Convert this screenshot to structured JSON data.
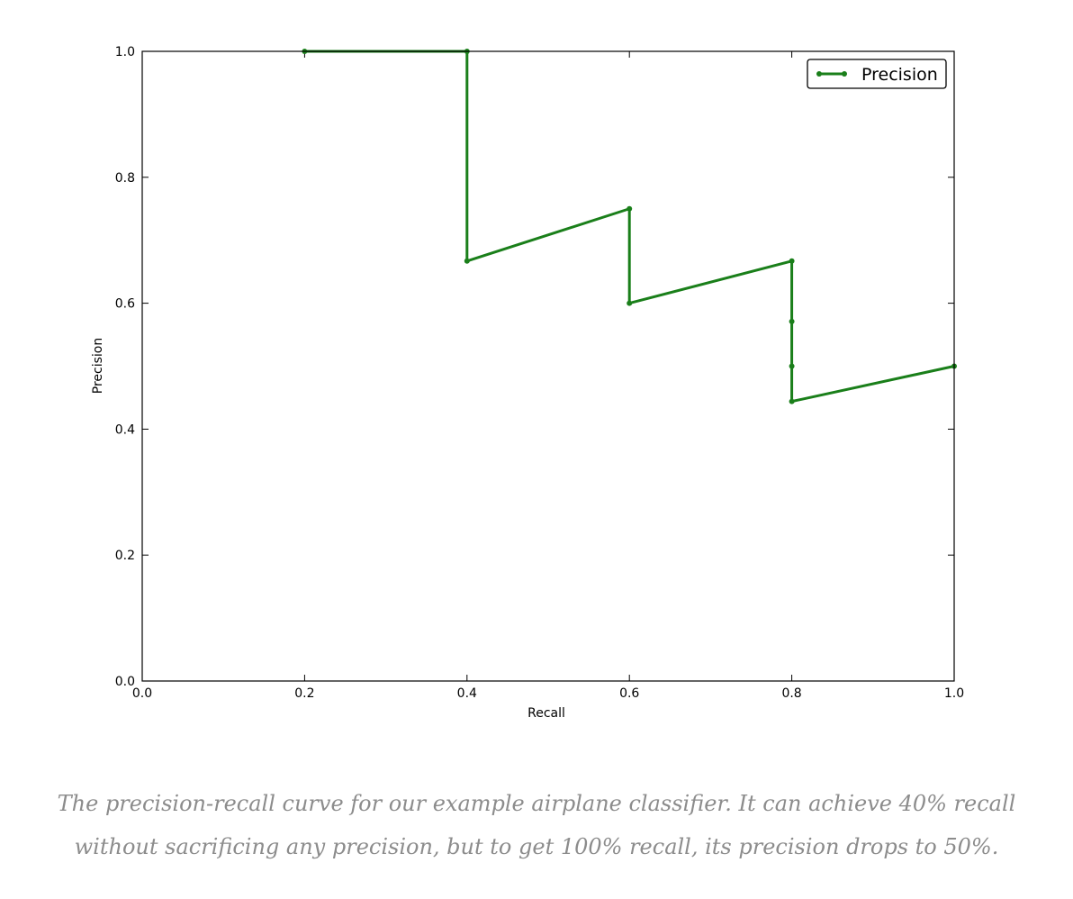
{
  "chart_data": {
    "type": "line",
    "xlabel": "Recall",
    "ylabel": "Precision",
    "xlim": [
      0.0,
      1.0
    ],
    "ylim": [
      0.0,
      1.0
    ],
    "xticks": [
      "0.0",
      "0.2",
      "0.4",
      "0.6",
      "0.8",
      "1.0"
    ],
    "yticks": [
      "0.0",
      "0.2",
      "0.4",
      "0.6",
      "0.8",
      "1.0"
    ],
    "grid": false,
    "legend": {
      "position": "top-right",
      "entries": [
        "Precision"
      ]
    },
    "series": [
      {
        "name": "Precision",
        "color": "#1a7f1a",
        "marker": "dot",
        "x": [
          0.2,
          0.4,
          0.4,
          0.6,
          0.6,
          0.8,
          0.8,
          0.8,
          0.8,
          1.0
        ],
        "y": [
          1.0,
          1.0,
          0.667,
          0.75,
          0.6,
          0.667,
          0.571,
          0.5,
          0.444,
          0.5
        ]
      }
    ]
  },
  "caption": {
    "line1": "The precision-recall curve for our example airplane classifier. It can achieve 40% recall",
    "line2": "without sacrificing any precision, but to get 100% recall, its precision drops to 50%."
  }
}
